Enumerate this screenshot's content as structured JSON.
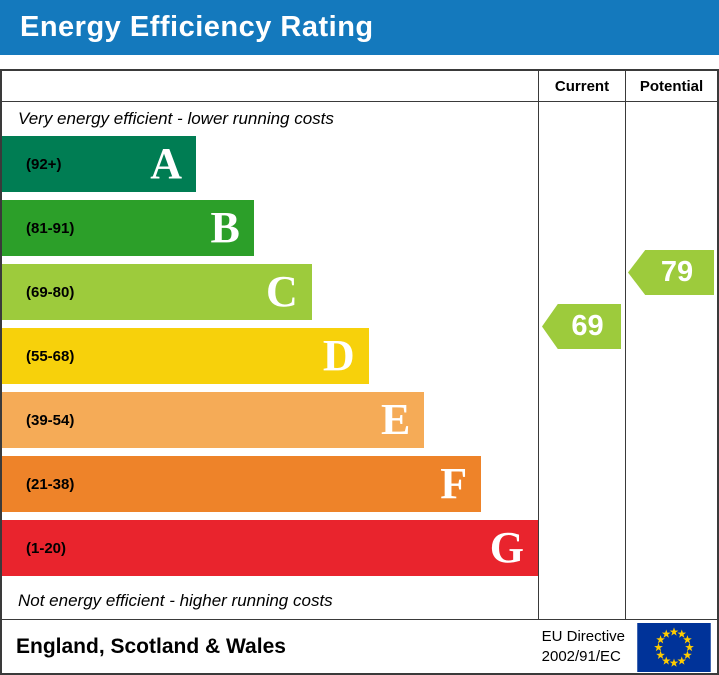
{
  "title": "Energy Efficiency Rating",
  "table": {
    "current_label": "Current",
    "potential_label": "Potential",
    "top_note": "Very energy efficient - lower running costs",
    "bottom_note": "Not energy efficient - higher running costs"
  },
  "chart_data": {
    "type": "bar",
    "title": "Energy Efficiency Rating",
    "bands": [
      {
        "letter": "A",
        "range": "(92+)",
        "color": "#007d53",
        "length_pct": 36.2
      },
      {
        "letter": "B",
        "range": "(81-91)",
        "color": "#2c9f29",
        "length_pct": 47.0
      },
      {
        "letter": "C",
        "range": "(69-80)",
        "color": "#9dcb3c",
        "length_pct": 57.8
      },
      {
        "letter": "D",
        "range": "(55-68)",
        "color": "#f7d10b",
        "length_pct": 68.4
      },
      {
        "letter": "E",
        "range": "(39-54)",
        "color": "#f5ab57",
        "length_pct": 78.8
      },
      {
        "letter": "F",
        "range": "(21-38)",
        "color": "#ee8329",
        "length_pct": 89.4
      },
      {
        "letter": "G",
        "range": "(1-20)",
        "color": "#e9242d",
        "length_pct": 100
      }
    ],
    "current": {
      "value": 69,
      "band": "C",
      "color": "#9dcb3c"
    },
    "potential": {
      "value": 79,
      "band": "C",
      "color": "#9dcb3c"
    },
    "notes": [
      "Very energy efficient - lower running costs",
      "Not energy efficient - higher running costs"
    ]
  },
  "footer": {
    "region": "England, Scotland & Wales",
    "directive": [
      "EU Directive",
      "2002/91/EC"
    ]
  },
  "colors": {
    "header_bg": "#1479bd",
    "header_text": "#ffffff",
    "border": "#3a3a3a",
    "flag_bg": "#003399",
    "flag_star": "#ffcc00"
  }
}
